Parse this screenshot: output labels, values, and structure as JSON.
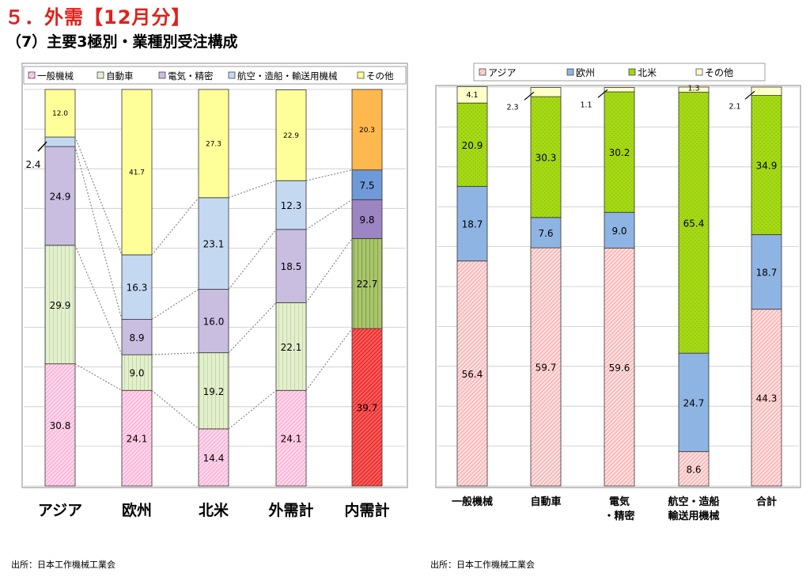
{
  "header": {
    "title": "５．外需【12月分】",
    "subtitle": "（7）主要3極別・業種別受注構成"
  },
  "colors": {
    "general_machinery": "#ff99cc",
    "automobile": "#e3efcf",
    "electrical_precision": "#c9bde0",
    "aerospace_shipping": "#c4d9f1",
    "others": "#ffff99",
    "domestic_general": "#ff3b3b",
    "domestic_auto": "#9bbb59",
    "domestic_elec": "#9c85c1",
    "domestic_aero": "#6f9ad9",
    "domestic_others": "#ffb84d",
    "asia": "#ff9999",
    "europe": "#8eb4e3",
    "north_america": "#a6d915",
    "region_others": "#ffffcc"
  },
  "chart_data": [
    {
      "type": "bar",
      "stacked": true,
      "categories": [
        "アジア",
        "欧州",
        "北米",
        "外需計",
        "内需計"
      ],
      "series": [
        {
          "name": "一般機械",
          "values": [
            30.8,
            24.1,
            14.4,
            24.1,
            39.7
          ]
        },
        {
          "name": "自動車",
          "values": [
            29.9,
            9.0,
            19.2,
            22.1,
            22.7
          ]
        },
        {
          "name": "電気・精密",
          "values": [
            24.9,
            8.9,
            16.0,
            18.5,
            9.8
          ]
        },
        {
          "name": "航空・造船・輸送用機械",
          "values": [
            2.4,
            16.3,
            23.1,
            12.3,
            7.5
          ]
        },
        {
          "name": "その他",
          "values": [
            12.0,
            41.7,
            27.3,
            22.9,
            20.3
          ]
        }
      ],
      "ylim": [
        0,
        100
      ],
      "grid": true,
      "legend": "top"
    },
    {
      "type": "bar",
      "stacked": true,
      "categories": [
        "一般機械",
        "自動車",
        "電気\n・精密",
        "航空・造船\n輸送用機械",
        "合計"
      ],
      "series": [
        {
          "name": "アジア",
          "values": [
            56.4,
            59.7,
            59.6,
            8.6,
            44.3
          ]
        },
        {
          "name": "欧州",
          "values": [
            18.7,
            7.6,
            9.0,
            24.7,
            18.7
          ]
        },
        {
          "name": "北米",
          "values": [
            20.9,
            30.3,
            30.2,
            65.4,
            34.9
          ]
        },
        {
          "name": "その他",
          "values": [
            4.1,
            2.3,
            1.1,
            1.3,
            2.1
          ]
        }
      ],
      "ylim": [
        0,
        100
      ],
      "grid": true,
      "legend": "top"
    }
  ],
  "footer": {
    "source_left": "出所：日本工作機械工業会",
    "source_right": "出所：日本工作機械工業会"
  }
}
